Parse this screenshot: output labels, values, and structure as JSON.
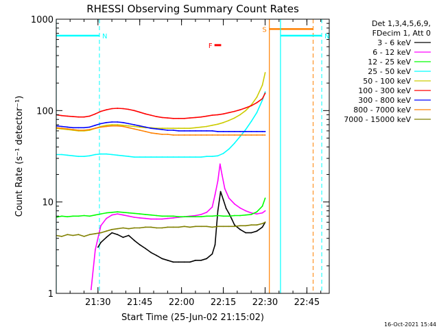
{
  "chart_data": {
    "type": "line",
    "title": "RHESSI Observing Summary Count Rates",
    "xlabel": "Start Time (25-Jun-02 21:15:02)",
    "ylabel": "Count Rate (s⁻¹ detector⁻¹)",
    "y_scale": "log",
    "ylim": [
      1,
      1000
    ],
    "y_ticks": [
      {
        "value": 1,
        "label": "1"
      },
      {
        "value": 10,
        "label": "10"
      },
      {
        "value": 100,
        "label": "100"
      },
      {
        "value": 1000,
        "label": "1000"
      }
    ],
    "x_unit": "minutes after 21:15:02",
    "xlim": [
      0,
      98
    ],
    "x_ticks": [
      {
        "value": 14.97,
        "label": "21:30"
      },
      {
        "value": 29.97,
        "label": "21:45"
      },
      {
        "value": 44.97,
        "label": "22:00"
      },
      {
        "value": 59.97,
        "label": "22:15"
      },
      {
        "value": 74.97,
        "label": "22:30"
      },
      {
        "value": 89.97,
        "label": "22:45"
      }
    ],
    "legend_header": [
      "Det 1,3,4,5,6,9,",
      "FDecim 1, Att 0"
    ],
    "legend_position": "right",
    "flags": [
      {
        "label": "N",
        "color": "#00ffff",
        "start": 0,
        "end": 15.5,
        "boundary": 15.5,
        "level": 660
      },
      {
        "label": "S",
        "color": "#ff8000",
        "start": 76.5,
        "end": 92.2,
        "boundary": 92.2,
        "level": 780
      },
      {
        "label": "N",
        "color": "#00ffff",
        "start": 80.5,
        "end": 95.3,
        "boundary": 95.3,
        "level": 660
      },
      {
        "label": "F",
        "color": "#ff0000",
        "start": 56.8,
        "end": 59.2,
        "level": 520
      }
    ],
    "series": [
      {
        "name": "3 - 6 keV",
        "color": "#000000",
        "x": [
          15,
          16,
          18,
          20,
          22,
          24,
          26,
          28,
          30,
          32,
          34,
          36,
          38,
          40,
          42,
          44,
          46,
          48,
          50,
          52,
          54,
          56,
          57,
          58,
          59,
          60,
          61,
          62,
          63,
          64,
          66,
          68,
          70,
          72,
          74,
          75
        ],
        "y": [
          3.2,
          3.6,
          4.1,
          4.6,
          4.4,
          4.1,
          4.3,
          3.8,
          3.4,
          3.1,
          2.8,
          2.6,
          2.4,
          2.3,
          2.2,
          2.2,
          2.2,
          2.2,
          2.3,
          2.3,
          2.4,
          2.7,
          3.4,
          8,
          13,
          10.5,
          8.5,
          7.5,
          6.5,
          5.6,
          5,
          4.6,
          4.6,
          4.8,
          5.3,
          6
        ]
      },
      {
        "name": "6 - 12 keV",
        "color": "#ff00ff",
        "x": [
          12.5,
          14,
          16,
          18,
          20,
          22,
          24,
          26,
          28,
          30,
          32,
          34,
          36,
          38,
          40,
          42,
          44,
          46,
          48,
          50,
          52,
          54,
          56,
          57,
          58,
          58.8,
          59.5,
          60.5,
          62,
          64,
          66,
          68,
          70,
          72,
          74,
          75
        ],
        "y": [
          1.1,
          3,
          5.5,
          6.6,
          7.2,
          7.4,
          7.2,
          7,
          6.8,
          6.7,
          6.6,
          6.5,
          6.5,
          6.5,
          6.6,
          6.7,
          6.8,
          6.9,
          7,
          7.1,
          7.3,
          7.7,
          8.8,
          12,
          17,
          26,
          20,
          14,
          11,
          9.5,
          8.6,
          8,
          7.6,
          7.4,
          7.6,
          8
        ]
      },
      {
        "name": "12 - 25 keV",
        "color": "#00ff00",
        "x": [
          0,
          2,
          4,
          6,
          8,
          10,
          12,
          14,
          16,
          18,
          20,
          22,
          24,
          26,
          28,
          30,
          32,
          34,
          36,
          38,
          40,
          42,
          44,
          46,
          48,
          50,
          52,
          54,
          56,
          58,
          60,
          62,
          64,
          66,
          68,
          70,
          72,
          74,
          75
        ],
        "y": [
          6.8,
          7,
          6.9,
          7,
          7,
          7.1,
          7,
          7.2,
          7.4,
          7.6,
          7.7,
          7.8,
          7.7,
          7.6,
          7.5,
          7.4,
          7.3,
          7.2,
          7.1,
          7,
          7,
          7,
          6.9,
          6.9,
          6.9,
          6.9,
          6.9,
          7,
          7,
          7.1,
          7,
          7,
          7.1,
          7.1,
          7.2,
          7.3,
          7.8,
          9,
          11
        ]
      },
      {
        "name": "25 - 50 keV",
        "color": "#00ffff",
        "x": [
          0,
          2,
          4,
          6,
          8,
          10,
          12,
          14,
          16,
          18,
          20,
          22,
          24,
          26,
          28,
          30,
          32,
          34,
          36,
          38,
          40,
          42,
          44,
          46,
          48,
          50,
          52,
          54,
          56,
          58,
          60,
          62,
          64,
          66,
          68,
          70,
          72,
          74,
          75
        ],
        "y": [
          33,
          33,
          32.5,
          32,
          31.5,
          31.5,
          32,
          33,
          33.5,
          33.5,
          33,
          32.5,
          32,
          31.5,
          31,
          31,
          31,
          31,
          31,
          31,
          31,
          31,
          31,
          31,
          31,
          31,
          31,
          31.5,
          31.5,
          32,
          34,
          38,
          44,
          52,
          62,
          76,
          95,
          130,
          160
        ]
      },
      {
        "name": "50 - 100 keV",
        "color": "#cccc00",
        "x": [
          0,
          2,
          4,
          6,
          8,
          10,
          12,
          14,
          16,
          18,
          20,
          22,
          24,
          26,
          28,
          30,
          32,
          34,
          36,
          38,
          40,
          42,
          44,
          46,
          48,
          50,
          52,
          54,
          56,
          58,
          60,
          62,
          64,
          66,
          68,
          70,
          72,
          74,
          75
        ],
        "y": [
          64,
          63,
          62,
          61,
          60,
          60,
          61,
          64,
          67,
          69,
          70,
          70,
          69,
          68,
          67,
          66,
          65,
          65,
          64,
          64,
          64,
          64,
          64,
          64,
          64,
          65,
          66,
          67,
          69,
          71,
          74,
          78,
          83,
          90,
          100,
          115,
          140,
          190,
          260
        ]
      },
      {
        "name": "100 - 300 keV",
        "color": "#ff0000",
        "x": [
          0,
          2,
          4,
          6,
          8,
          10,
          12,
          14,
          16,
          18,
          20,
          22,
          24,
          26,
          28,
          30,
          32,
          34,
          36,
          38,
          40,
          42,
          44,
          46,
          48,
          50,
          52,
          54,
          56,
          58,
          60,
          62,
          64,
          66,
          68,
          70,
          72,
          74,
          75
        ],
        "y": [
          90,
          88,
          87,
          86,
          85,
          85,
          87,
          92,
          98,
          102,
          105,
          106,
          105,
          103,
          100,
          96,
          92,
          89,
          86,
          84,
          83,
          82,
          82,
          82,
          83,
          84,
          85,
          87,
          89,
          90,
          92,
          95,
          98,
          102,
          107,
          113,
          122,
          135,
          155
        ]
      },
      {
        "name": "300 - 800 keV",
        "color": "#0000ff",
        "x": [
          0,
          2,
          4,
          6,
          8,
          10,
          12,
          14,
          16,
          18,
          20,
          22,
          24,
          26,
          28,
          30,
          32,
          34,
          36,
          38,
          40,
          42,
          44,
          46,
          48,
          50,
          52,
          54,
          56,
          58,
          60,
          62,
          64,
          66,
          68,
          70,
          72,
          74,
          75
        ],
        "y": [
          68,
          67,
          66,
          65,
          65,
          65,
          66,
          69,
          72,
          74,
          75,
          75,
          74,
          72,
          70,
          68,
          66,
          64,
          63,
          62,
          61,
          61,
          60,
          60,
          60,
          60,
          60,
          60,
          60,
          59,
          59,
          59,
          59,
          59,
          59,
          59,
          59,
          59,
          59
        ]
      },
      {
        "name": "800 - 7000 keV",
        "color": "#ff8000",
        "x": [
          0,
          2,
          4,
          6,
          8,
          10,
          12,
          14,
          16,
          18,
          20,
          22,
          24,
          26,
          28,
          30,
          32,
          34,
          36,
          38,
          40,
          42,
          44,
          46,
          48,
          50,
          52,
          54,
          56,
          58,
          60,
          62,
          64,
          66,
          68,
          70,
          72,
          74,
          75
        ],
        "y": [
          65,
          64,
          63,
          62,
          61,
          61,
          62,
          64,
          66,
          67,
          68,
          68,
          67,
          65,
          63,
          61,
          59,
          57,
          56,
          55,
          55,
          54,
          54,
          54,
          54,
          54,
          54,
          54,
          54,
          54,
          54,
          54,
          54,
          54,
          54,
          54,
          54,
          54,
          54
        ]
      },
      {
        "name": "7000 - 15000 keV",
        "color": "#808000",
        "x": [
          0,
          2,
          4,
          6,
          8,
          10,
          12,
          14,
          16,
          18,
          20,
          22,
          24,
          26,
          28,
          30,
          32,
          34,
          36,
          38,
          40,
          42,
          44,
          46,
          48,
          50,
          52,
          54,
          56,
          58,
          60,
          62,
          64,
          66,
          68,
          70,
          72,
          74,
          75
        ],
        "y": [
          4.3,
          4.2,
          4.4,
          4.3,
          4.4,
          4.2,
          4.4,
          4.5,
          4.6,
          4.8,
          5,
          5.1,
          5.2,
          5.1,
          5.2,
          5.2,
          5.3,
          5.3,
          5.2,
          5.2,
          5.3,
          5.3,
          5.3,
          5.4,
          5.3,
          5.4,
          5.4,
          5.4,
          5.3,
          5.4,
          5.4,
          5.4,
          5.4,
          5.5,
          5.5,
          5.6,
          5.6,
          5.8,
          6
        ]
      }
    ]
  },
  "footer_timestamp": "16-Oct-2021 15:44"
}
